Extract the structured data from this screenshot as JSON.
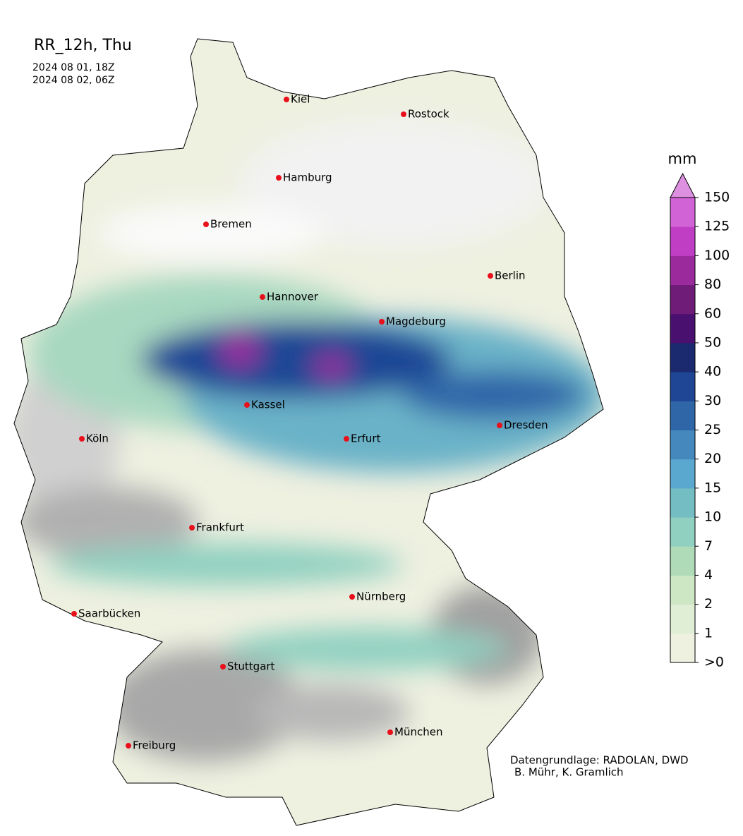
{
  "header": {
    "title": "RR_12h, Thu",
    "start": "2024 08 01, 18Z",
    "end": "2024 08 02, 06Z"
  },
  "cities": [
    "Kiel",
    "Rostock",
    "Hamburg",
    "Bremen",
    "Berlin",
    "Hannover",
    "Magdeburg",
    "Kassel",
    "Erfurt",
    "Dresden",
    "Köln",
    "Frankfurt",
    "Nürnberg",
    "Saarbücken",
    "Stuttgart",
    "Freiburg",
    "München"
  ],
  "colorbar": {
    "unit": "mm",
    "labels": [
      ">0",
      "1",
      "2",
      "4",
      "7",
      "10",
      "15",
      "20",
      "25",
      "30",
      "40",
      "50",
      "60",
      "80",
      "100",
      "125",
      "150"
    ],
    "colors": [
      "#eef0e0",
      "#e0eed6",
      "#cde6c4",
      "#afdbb8",
      "#90d0c0",
      "#74bdc3",
      "#5aa8d0",
      "#4488be",
      "#2e66a8",
      "#1f4695",
      "#1b2a6e",
      "#4a1070",
      "#6e1c78",
      "#9b2a9c",
      "#c03ec4",
      "#d263d6"
    ],
    "extend_color": "#dd8fe0"
  },
  "credits": [
    "Datengrundlage: RADOLAN, DWD",
    "B. Mühr, K. Gramlich"
  ]
}
